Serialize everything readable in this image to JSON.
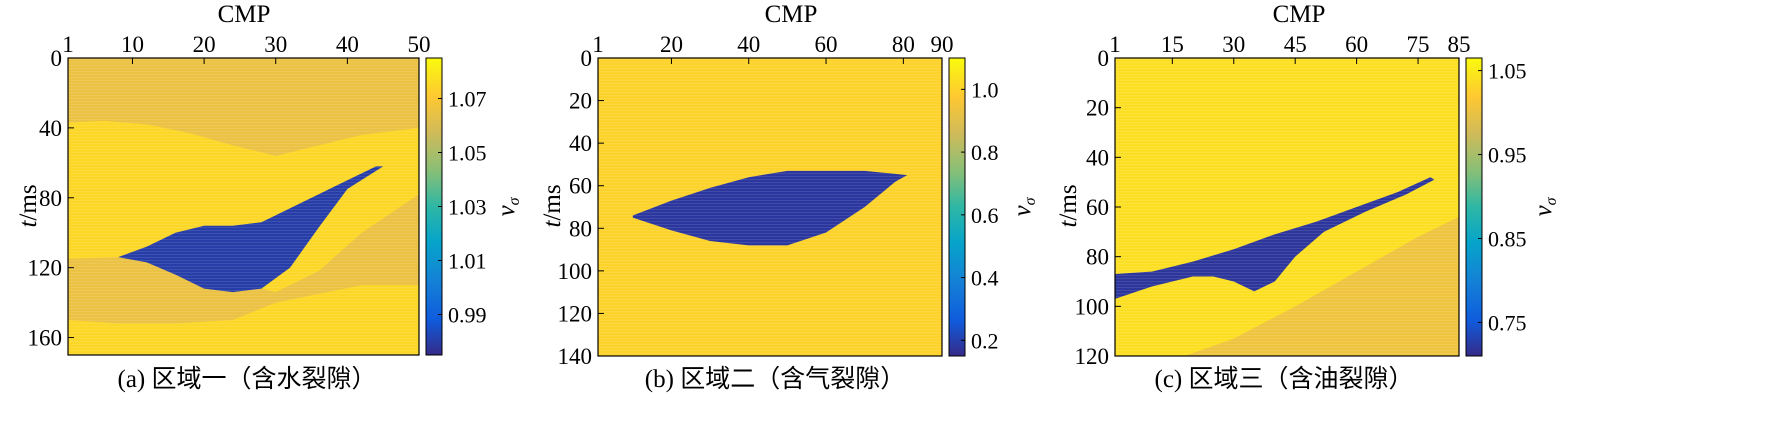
{
  "chart_data": [
    {
      "type": "heatmap",
      "caption": "(a) 区域一（含水裂隙）",
      "xlabel": "CMP",
      "ylabel_italic": "t",
      "ylabel_unit": "/ms",
      "xticks": [
        1,
        10,
        20,
        30,
        40,
        50
      ],
      "xlim": [
        1,
        50
      ],
      "yticks": [
        0,
        40,
        80,
        120,
        160
      ],
      "ylim": [
        0,
        170
      ],
      "colorbar": {
        "label_base": "v",
        "label_sub": "σ",
        "ticks": [
          "1.07",
          "1.05",
          "1.03",
          "1.01",
          "0.99"
        ],
        "tick_values": [
          1.07,
          1.05,
          1.03,
          1.01,
          0.99
        ],
        "range": [
          0.975,
          1.085
        ]
      },
      "field": {
        "background_value": 1.075,
        "upper_band": {
          "value": 1.065,
          "top": [
            0,
            0,
            0,
            0,
            0,
            0,
            0,
            0,
            0
          ],
          "bottom_x": [
            1,
            6,
            12,
            18,
            24,
            30,
            36,
            42,
            50
          ],
          "bottom": [
            37,
            36,
            38,
            43,
            50,
            56,
            50,
            44,
            40
          ]
        },
        "lower_band": {
          "value": 1.065,
          "top_x": [
            1,
            8,
            16,
            24,
            30,
            36,
            42,
            50
          ],
          "top": [
            115,
            114,
            118,
            128,
            134,
            122,
            100,
            78
          ],
          "bottom_x": [
            1,
            8,
            16,
            24,
            30,
            36,
            42,
            50
          ],
          "bottom": [
            150,
            152,
            152,
            150,
            140,
            135,
            130,
            130
          ]
        },
        "anomaly": {
          "value": 0.98,
          "x": [
            8,
            12,
            16,
            20,
            24,
            28,
            32,
            36,
            40,
            44,
            45,
            40,
            36,
            32,
            28,
            24,
            20,
            16,
            12,
            8
          ],
          "y": [
            114,
            108,
            100,
            96,
            96,
            94,
            86,
            78,
            70,
            62,
            62,
            75,
            97,
            120,
            132,
            134,
            132,
            124,
            117,
            114
          ]
        }
      }
    },
    {
      "type": "heatmap",
      "caption": "(b) 区域二（含气裂隙）",
      "xlabel": "CMP",
      "ylabel_italic": "t",
      "ylabel_unit": "/ms",
      "xticks": [
        1,
        20,
        40,
        60,
        80,
        90
      ],
      "xlim": [
        1,
        90
      ],
      "yticks": [
        0,
        20,
        40,
        60,
        80,
        100,
        120,
        140
      ],
      "ylim": [
        0,
        140
      ],
      "colorbar": {
        "label_base": "v",
        "label_sub": "σ",
        "ticks": [
          "1.0",
          "0.8",
          "0.6",
          "0.4",
          "0.2"
        ],
        "tick_values": [
          1.0,
          0.8,
          0.6,
          0.4,
          0.2
        ],
        "range": [
          0.15,
          1.1
        ]
      },
      "field": {
        "background_value": 1.0,
        "anomaly": {
          "value": 0.18,
          "x": [
            10,
            20,
            30,
            40,
            50,
            60,
            70,
            81,
            78,
            70,
            60,
            50,
            40,
            30,
            20,
            10
          ],
          "y": [
            74,
            67,
            61,
            56,
            53,
            53,
            53,
            55,
            58,
            70,
            82,
            88,
            88,
            86,
            81,
            75
          ]
        }
      }
    },
    {
      "type": "heatmap",
      "caption": "(c) 区域三（含油裂隙）",
      "xlabel": "CMP",
      "ylabel_italic": "t",
      "ylabel_unit": "/ms",
      "xticks": [
        1,
        15,
        30,
        45,
        60,
        75,
        85
      ],
      "xlim": [
        1,
        85
      ],
      "yticks": [
        0,
        20,
        40,
        60,
        80,
        100,
        120
      ],
      "ylim": [
        0,
        120
      ],
      "colorbar": {
        "label_base": "v",
        "label_sub": "σ",
        "ticks": [
          "1.05",
          "0.95",
          "0.85",
          "0.75"
        ],
        "tick_values": [
          1.05,
          0.95,
          0.85,
          0.75
        ],
        "range": [
          0.71,
          1.065
        ]
      },
      "field": {
        "background_value": 1.04,
        "lower_band": {
          "value": 1.005,
          "top_x": [
            18,
            30,
            45,
            60,
            75,
            85
          ],
          "top": [
            120,
            113,
            100,
            86,
            72,
            64
          ]
        },
        "anomaly": {
          "value": 0.72,
          "x": [
            1,
            10,
            20,
            30,
            40,
            50,
            60,
            70,
            78,
            79,
            72,
            62,
            52,
            45,
            40,
            35,
            30,
            25,
            20,
            10,
            1
          ],
          "y": [
            87,
            86,
            82,
            77,
            71,
            66,
            60,
            54,
            48,
            49,
            55,
            62,
            70,
            80,
            90,
            94,
            90,
            88,
            88,
            92,
            97
          ]
        }
      }
    }
  ]
}
